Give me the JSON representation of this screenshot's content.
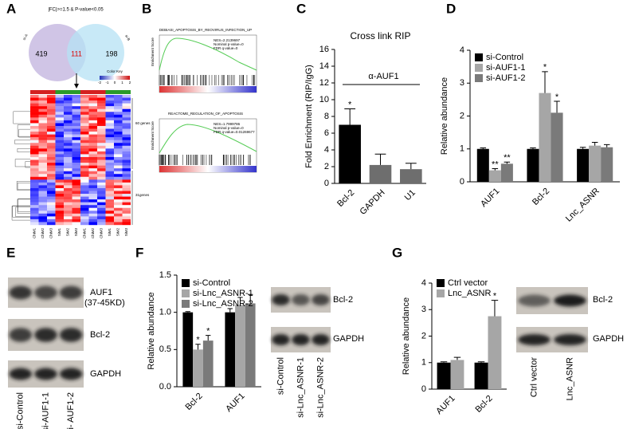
{
  "panel_labels": [
    "A",
    "B",
    "C",
    "D",
    "E",
    "F",
    "G"
  ],
  "panel_a": {
    "criteria": "|FC|>=1.5 & P-value<0.05",
    "set_labels": [
      "si-A",
      "si-B"
    ],
    "venn": [
      419,
      111,
      198
    ],
    "color_key": "Color Key",
    "color_key_ticks": [
      -2,
      -1,
      0,
      1,
      2
    ],
    "clusters": [
      "60 genes",
      "31genes"
    ],
    "columns": [
      "ChiM1",
      "ChiM2",
      "ChiM3",
      "SiM1",
      "SiM2",
      "SiM3",
      "ChiM1",
      "ChiM2",
      "ChiM3",
      "SiM1",
      "SiM2",
      "SiM3"
    ]
  },
  "panel_b": {
    "ylabel": "Enrichment Score",
    "gsea": [
      {
        "title": "DEBIASI_APOPTOSIS_BY_REOVIRUS_INFECTION_UP",
        "stats": [
          "NES=2.2139697",
          "Nominal p-value=0",
          "FDR q-value=0"
        ]
      },
      {
        "title": "REACTOME_REGULATION_OF_APOPTOSIS",
        "stats": [
          "NES=1.7999786",
          "Nominal p-value=0",
          "FDR q-value=0.01269677"
        ]
      }
    ]
  },
  "panel_e": {
    "bands": [
      "AUF1",
      "(37-45KD)",
      "Bcl-2",
      "GAPDH"
    ],
    "lanes": [
      "si-Control",
      "si-AUF1-1",
      "si- AUF1-2"
    ]
  },
  "panel_f_blot": {
    "bands": [
      "Bcl-2",
      "GAPDH"
    ],
    "lanes": [
      "si-Control",
      "si-Lnc_ASNR-1",
      "si-Lnc_ASNR-2"
    ]
  },
  "panel_g_blot": {
    "bands": [
      "Bcl-2",
      "GAPDH"
    ],
    "lanes": [
      "Ctrl vector",
      "Lnc_ASNR"
    ]
  },
  "chart_data": [
    {
      "type": "bar",
      "title": "Cross link RIP",
      "y_label": "Fold Enrichment (RIP/IgG)",
      "annotation": "α-AUF1",
      "categories": [
        "Bcl-2",
        "GAPDH",
        "U1"
      ],
      "series": [
        {
          "colors": [
            "#000000",
            "#6e6e6e",
            "#6e6e6e"
          ],
          "values": [
            7.0,
            2.2,
            1.7
          ],
          "errors": [
            1.9,
            1.3,
            0.7
          ],
          "significance": [
            "*",
            null,
            null
          ]
        }
      ],
      "ylim": [
        0,
        16
      ],
      "yticks": [
        0,
        2,
        4,
        6,
        8,
        10,
        12,
        14,
        16
      ]
    },
    {
      "type": "bar",
      "y_label": "Relative abundance",
      "categories": [
        "AUF1",
        "Bcl-2",
        "Lnc_ASNR"
      ],
      "series": [
        {
          "name": "si-Control",
          "color": "#000000",
          "values": [
            1.0,
            1.0,
            1.0
          ],
          "errors": [
            0.03,
            0.03,
            0.05
          ],
          "significance": [
            null,
            null,
            null
          ]
        },
        {
          "name": "si-AUF1-1",
          "color": "#a6a6a6",
          "values": [
            0.35,
            2.7,
            1.1
          ],
          "errors": [
            0.05,
            0.65,
            0.1
          ],
          "significance": [
            "**",
            "*",
            null
          ]
        },
        {
          "name": "si-AUF1-2",
          "color": "#7a7a7a",
          "values": [
            0.55,
            2.1,
            1.05
          ],
          "errors": [
            0.05,
            0.35,
            0.08
          ],
          "significance": [
            "**",
            "*",
            null
          ]
        }
      ],
      "ylim": [
        0,
        4
      ],
      "yticks": [
        0,
        1,
        2,
        3,
        4
      ]
    },
    {
      "type": "bar",
      "y_label": "Relative abundance",
      "categories": [
        "Bcl-2",
        "AUF1"
      ],
      "series": [
        {
          "name": "si-Control",
          "color": "#000000",
          "values": [
            1.0,
            1.0
          ],
          "errors": [
            0.01,
            0.05
          ],
          "significance": [
            null,
            null
          ]
        },
        {
          "name": "si-Lnc_ASNR-1",
          "color": "#a6a6a6",
          "values": [
            0.5,
            1.1
          ],
          "errors": [
            0.07,
            0.1
          ],
          "significance": [
            "*",
            null
          ]
        },
        {
          "name": "si-Lnc_ASNR-2",
          "color": "#7a7a7a",
          "values": [
            0.62,
            1.12
          ],
          "errors": [
            0.07,
            0.12
          ],
          "significance": [
            "*",
            null
          ]
        }
      ],
      "ylim": [
        0,
        1.5
      ],
      "yticks": [
        {
          "value": 0,
          "label": "0.0"
        },
        0.5,
        {
          "value": 1,
          "label": "1.0"
        },
        1.5
      ]
    },
    {
      "type": "bar",
      "y_label": "Relative abundance",
      "categories": [
        "AUF1",
        "Bcl-2"
      ],
      "series": [
        {
          "name": "Ctrl vector",
          "color": "#000000",
          "values": [
            1.0,
            1.0
          ],
          "errors": [
            0.03,
            0.03
          ],
          "significance": [
            null,
            null
          ]
        },
        {
          "name": "Lnc_ASNR",
          "color": "#a6a6a6",
          "values": [
            1.1,
            2.75
          ],
          "errors": [
            0.1,
            0.6
          ],
          "significance": [
            null,
            "*"
          ]
        }
      ],
      "ylim": [
        0,
        4
      ],
      "yticks": [
        0,
        1,
        2,
        3,
        4
      ]
    }
  ]
}
